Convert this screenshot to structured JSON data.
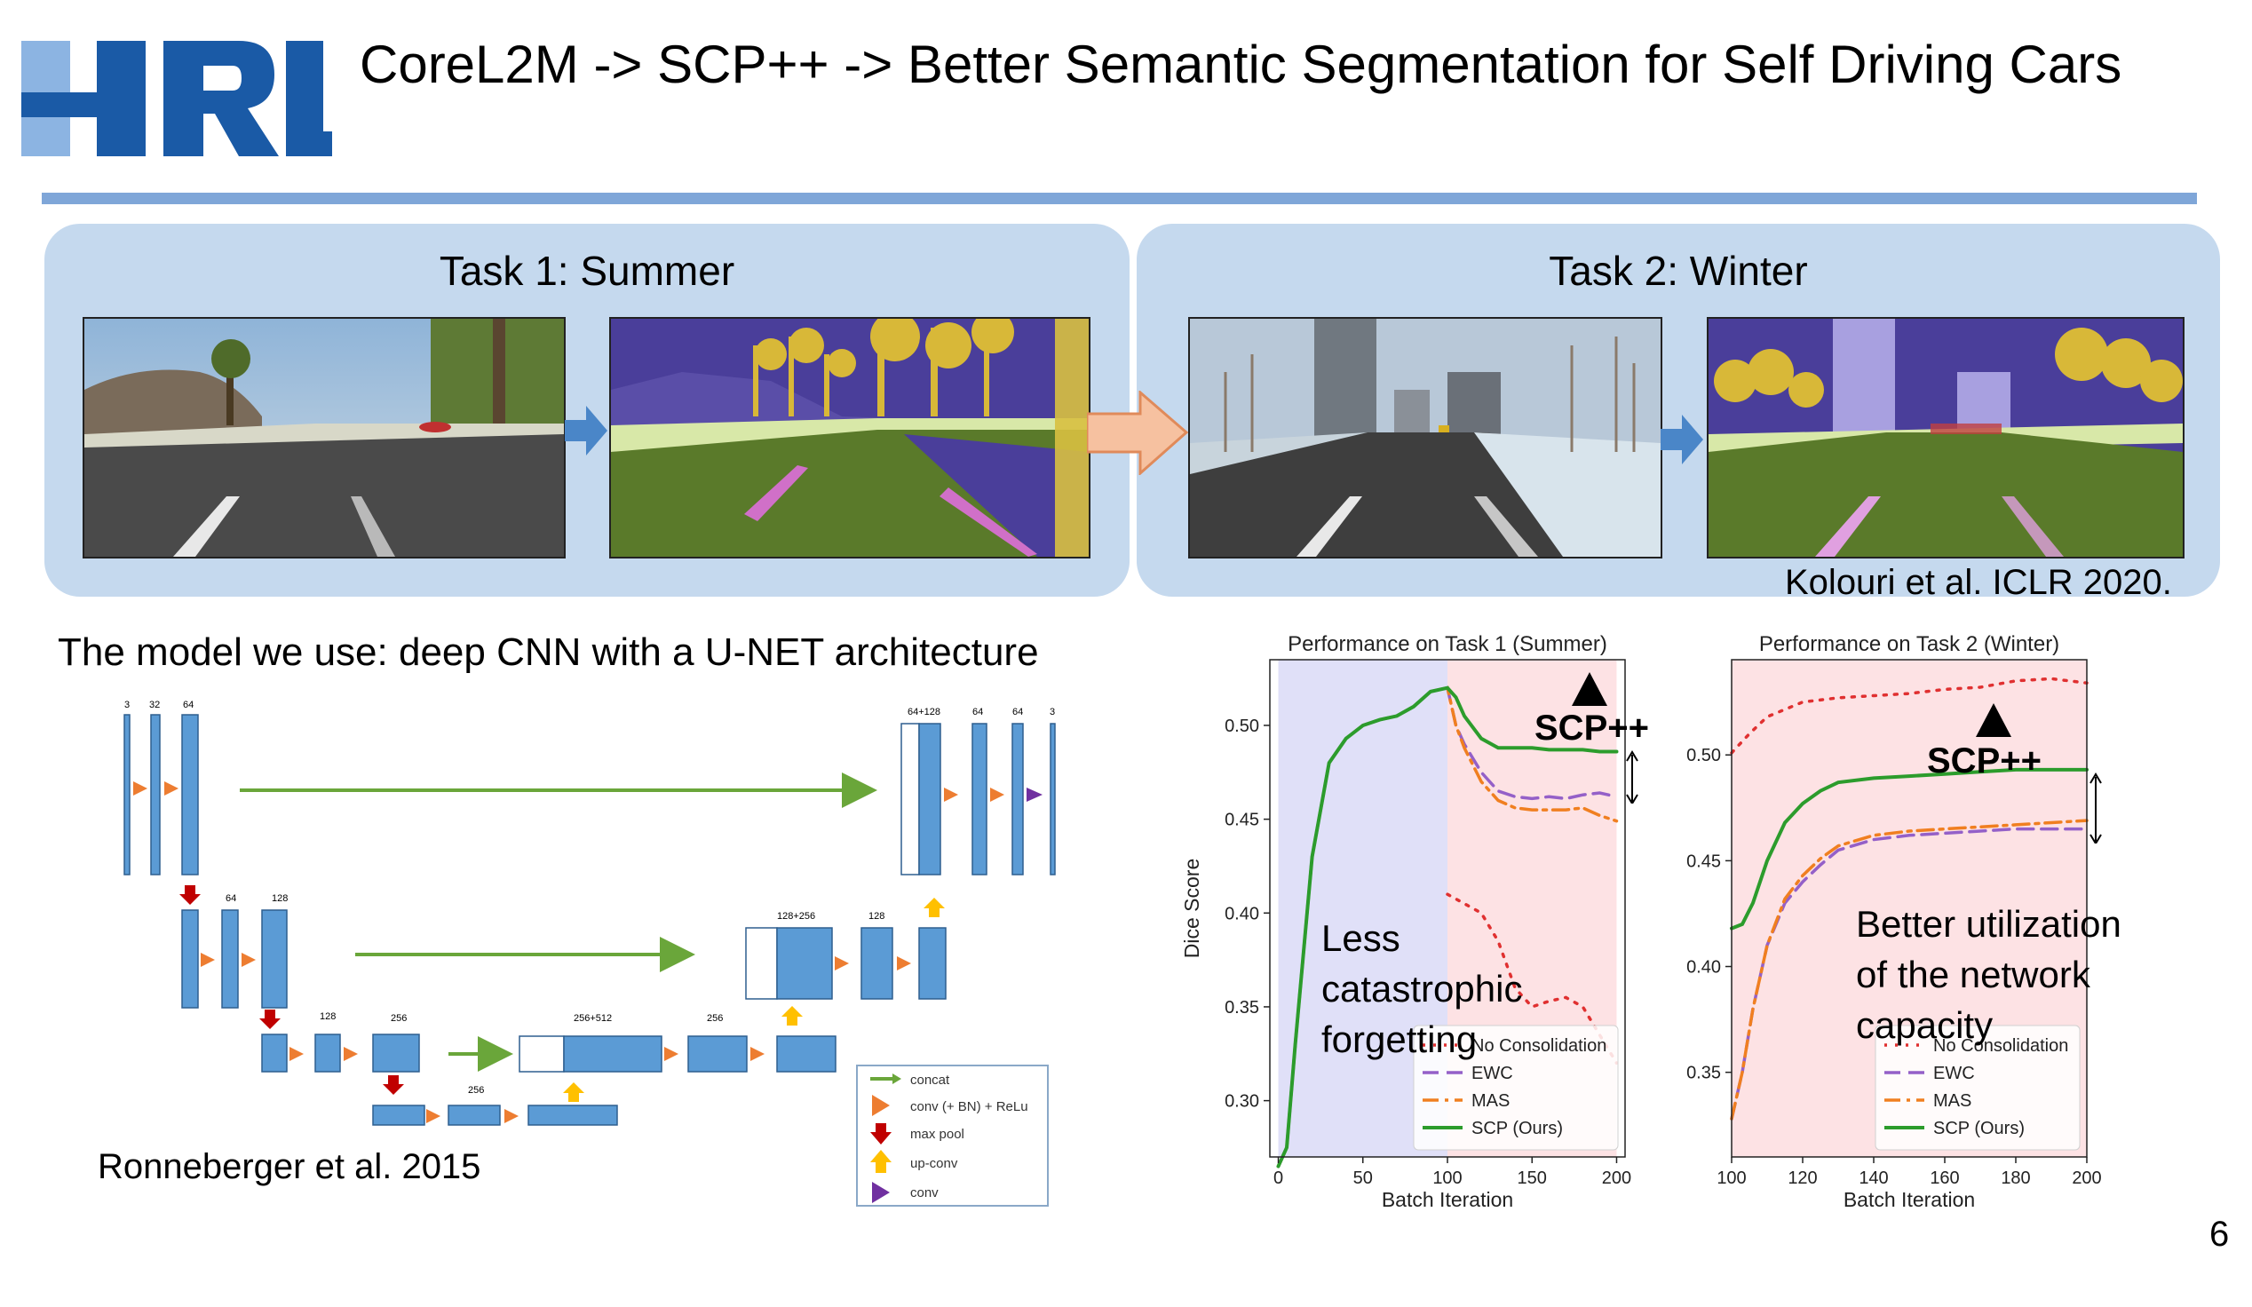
{
  "slide": {
    "title": "CoreL2M -> SCP++ -> Better Semantic Segmentation for Self Driving Cars",
    "logo_text": "HRL",
    "page_number": "6"
  },
  "tasks": [
    {
      "title": "Task 1: Summer"
    },
    {
      "title": "Task 2: Winter"
    }
  ],
  "citation_kolouri": "Kolouri et al. ICLR 2020.",
  "model_text": "The model we use: deep CNN with a U-NET architecture",
  "citation_ronneberger": "Ronneberger et al. 2015",
  "unet": {
    "channel_labels": [
      "3",
      "32",
      "64",
      "64+128",
      "64",
      "64",
      "3",
      "64",
      "128",
      "128+256",
      "128",
      "128",
      "256",
      "256+512",
      "256",
      "256"
    ],
    "legend": [
      "concat",
      "conv (+ BN) + ReLu",
      "max pool",
      "up-conv",
      "conv"
    ]
  },
  "annotations": {
    "scp_task1": "SCP++",
    "scp_task2": "SCP++",
    "less_forgetting": [
      "Less",
      "catastrophic",
      "forgetting"
    ],
    "better_utilization": [
      "Better utilization",
      "of the network",
      "capacity"
    ]
  },
  "colors": {
    "brand_blue": "#1a5aa6",
    "rule": "#7fa6d8",
    "panel": "#c5d9ee",
    "task1_region": "#e0e0f8",
    "task2_region": "#fde2e4"
  },
  "chart_data": [
    {
      "type": "line",
      "title": "Performance on Task 1 (Summer)",
      "xlabel": "Batch Iteration",
      "ylabel": "Dice Score",
      "xlim": [
        -5,
        205
      ],
      "ylim": [
        0.27,
        0.535
      ],
      "xticks": [
        0,
        50,
        100,
        150,
        200
      ],
      "yticks": [
        0.3,
        0.35,
        0.4,
        0.45,
        0.5
      ],
      "legend": [
        "No Consolidation",
        "EWC",
        "MAS",
        "SCP (Ours)"
      ],
      "series": [
        {
          "name": "No Consolidation",
          "color": "#e03030",
          "dash": "dotted",
          "x": [
            100,
            110,
            120,
            130,
            140,
            150,
            160,
            170,
            180,
            190,
            200
          ],
          "y": [
            0.41,
            0.405,
            0.4,
            0.385,
            0.36,
            0.35,
            0.353,
            0.355,
            0.35,
            0.335,
            0.32
          ]
        },
        {
          "name": "EWC",
          "color": "#9460c8",
          "dash": "dashed",
          "x": [
            0,
            5,
            10,
            20,
            30,
            40,
            50,
            60,
            70,
            80,
            90,
            100,
            105,
            110,
            120,
            130,
            140,
            150,
            160,
            170,
            180,
            190,
            200
          ],
          "y": [
            0.265,
            0.275,
            0.33,
            0.43,
            0.48,
            0.493,
            0.5,
            0.503,
            0.505,
            0.51,
            0.518,
            0.52,
            0.5,
            0.49,
            0.475,
            0.465,
            0.462,
            0.461,
            0.462,
            0.461,
            0.463,
            0.464,
            0.462
          ]
        },
        {
          "name": "MAS",
          "color": "#f07f20",
          "dash": "dashdot",
          "x": [
            0,
            5,
            10,
            20,
            30,
            40,
            50,
            60,
            70,
            80,
            90,
            100,
            105,
            110,
            120,
            130,
            140,
            150,
            160,
            170,
            180,
            190,
            200
          ],
          "y": [
            0.265,
            0.275,
            0.33,
            0.43,
            0.48,
            0.493,
            0.5,
            0.503,
            0.505,
            0.51,
            0.518,
            0.52,
            0.5,
            0.488,
            0.47,
            0.46,
            0.456,
            0.455,
            0.455,
            0.455,
            0.456,
            0.452,
            0.449
          ]
        },
        {
          "name": "SCP (Ours)",
          "color": "#2c9c2c",
          "dash": "solid",
          "x": [
            0,
            5,
            10,
            20,
            30,
            40,
            50,
            60,
            70,
            80,
            90,
            100,
            105,
            110,
            120,
            130,
            140,
            150,
            160,
            170,
            180,
            190,
            200
          ],
          "y": [
            0.265,
            0.275,
            0.33,
            0.43,
            0.48,
            0.493,
            0.5,
            0.503,
            0.505,
            0.51,
            0.518,
            0.52,
            0.515,
            0.505,
            0.493,
            0.488,
            0.488,
            0.488,
            0.487,
            0.487,
            0.487,
            0.486,
            0.486
          ]
        }
      ]
    },
    {
      "type": "line",
      "title": "Performance on Task 2 (Winter)",
      "xlabel": "Batch Iteration",
      "ylabel": "",
      "xlim": [
        100,
        200
      ],
      "ylim": [
        0.31,
        0.545
      ],
      "xticks": [
        100,
        120,
        140,
        160,
        180,
        200
      ],
      "yticks": [
        0.35,
        0.4,
        0.45,
        0.5
      ],
      "legend": [
        "No Consolidation",
        "EWC",
        "MAS",
        "SCP (Ours)"
      ],
      "series": [
        {
          "name": "No Consolidation",
          "color": "#e03030",
          "dash": "dotted",
          "x": [
            100,
            105,
            110,
            120,
            130,
            140,
            150,
            160,
            170,
            180,
            190,
            200
          ],
          "y": [
            0.501,
            0.51,
            0.518,
            0.525,
            0.527,
            0.528,
            0.529,
            0.531,
            0.532,
            0.535,
            0.536,
            0.534
          ]
        },
        {
          "name": "EWC",
          "color": "#9460c8",
          "dash": "dashed",
          "x": [
            100,
            103,
            106,
            110,
            115,
            120,
            125,
            130,
            140,
            150,
            160,
            170,
            180,
            190,
            200
          ],
          "y": [
            0.328,
            0.35,
            0.38,
            0.41,
            0.43,
            0.44,
            0.448,
            0.455,
            0.46,
            0.462,
            0.463,
            0.464,
            0.465,
            0.465,
            0.465
          ]
        },
        {
          "name": "MAS",
          "color": "#f07f20",
          "dash": "dashdot",
          "x": [
            100,
            103,
            106,
            110,
            115,
            120,
            125,
            130,
            140,
            150,
            160,
            170,
            180,
            190,
            200
          ],
          "y": [
            0.328,
            0.35,
            0.38,
            0.41,
            0.432,
            0.443,
            0.451,
            0.457,
            0.462,
            0.464,
            0.465,
            0.466,
            0.467,
            0.468,
            0.469
          ]
        },
        {
          "name": "SCP (Ours)",
          "color": "#2c9c2c",
          "dash": "solid",
          "x": [
            100,
            103,
            106,
            110,
            115,
            120,
            125,
            130,
            140,
            150,
            160,
            170,
            180,
            190,
            200
          ],
          "y": [
            0.418,
            0.42,
            0.43,
            0.45,
            0.468,
            0.477,
            0.483,
            0.487,
            0.489,
            0.49,
            0.491,
            0.492,
            0.493,
            0.493,
            0.493
          ]
        }
      ]
    }
  ]
}
